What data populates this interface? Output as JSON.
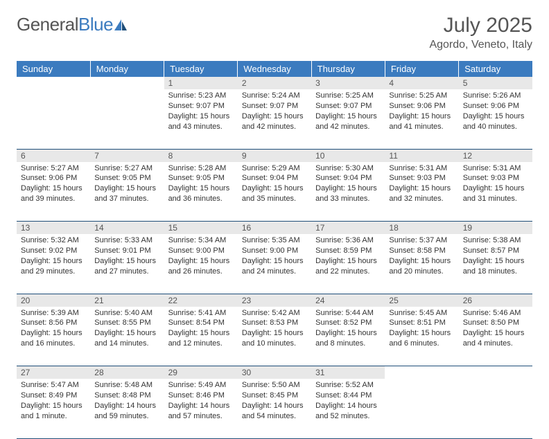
{
  "brand": {
    "part1": "General",
    "part2": "Blue"
  },
  "title": "July 2025",
  "location": "Agordo, Veneto, Italy",
  "colors": {
    "header_bg": "#3b7bbf",
    "header_text": "#ffffff",
    "daynum_bg": "#e8e8e8",
    "border": "#1f4e79",
    "text": "#333333",
    "title_text": "#555555"
  },
  "weekdays": [
    "Sunday",
    "Monday",
    "Tuesday",
    "Wednesday",
    "Thursday",
    "Friday",
    "Saturday"
  ],
  "weeks": [
    [
      null,
      null,
      {
        "n": "1",
        "sr": "5:23 AM",
        "ss": "9:07 PM",
        "dl": "15 hours and 43 minutes."
      },
      {
        "n": "2",
        "sr": "5:24 AM",
        "ss": "9:07 PM",
        "dl": "15 hours and 42 minutes."
      },
      {
        "n": "3",
        "sr": "5:25 AM",
        "ss": "9:07 PM",
        "dl": "15 hours and 42 minutes."
      },
      {
        "n": "4",
        "sr": "5:25 AM",
        "ss": "9:06 PM",
        "dl": "15 hours and 41 minutes."
      },
      {
        "n": "5",
        "sr": "5:26 AM",
        "ss": "9:06 PM",
        "dl": "15 hours and 40 minutes."
      }
    ],
    [
      {
        "n": "6",
        "sr": "5:27 AM",
        "ss": "9:06 PM",
        "dl": "15 hours and 39 minutes."
      },
      {
        "n": "7",
        "sr": "5:27 AM",
        "ss": "9:05 PM",
        "dl": "15 hours and 37 minutes."
      },
      {
        "n": "8",
        "sr": "5:28 AM",
        "ss": "9:05 PM",
        "dl": "15 hours and 36 minutes."
      },
      {
        "n": "9",
        "sr": "5:29 AM",
        "ss": "9:04 PM",
        "dl": "15 hours and 35 minutes."
      },
      {
        "n": "10",
        "sr": "5:30 AM",
        "ss": "9:04 PM",
        "dl": "15 hours and 33 minutes."
      },
      {
        "n": "11",
        "sr": "5:31 AM",
        "ss": "9:03 PM",
        "dl": "15 hours and 32 minutes."
      },
      {
        "n": "12",
        "sr": "5:31 AM",
        "ss": "9:03 PM",
        "dl": "15 hours and 31 minutes."
      }
    ],
    [
      {
        "n": "13",
        "sr": "5:32 AM",
        "ss": "9:02 PM",
        "dl": "15 hours and 29 minutes."
      },
      {
        "n": "14",
        "sr": "5:33 AM",
        "ss": "9:01 PM",
        "dl": "15 hours and 27 minutes."
      },
      {
        "n": "15",
        "sr": "5:34 AM",
        "ss": "9:00 PM",
        "dl": "15 hours and 26 minutes."
      },
      {
        "n": "16",
        "sr": "5:35 AM",
        "ss": "9:00 PM",
        "dl": "15 hours and 24 minutes."
      },
      {
        "n": "17",
        "sr": "5:36 AM",
        "ss": "8:59 PM",
        "dl": "15 hours and 22 minutes."
      },
      {
        "n": "18",
        "sr": "5:37 AM",
        "ss": "8:58 PM",
        "dl": "15 hours and 20 minutes."
      },
      {
        "n": "19",
        "sr": "5:38 AM",
        "ss": "8:57 PM",
        "dl": "15 hours and 18 minutes."
      }
    ],
    [
      {
        "n": "20",
        "sr": "5:39 AM",
        "ss": "8:56 PM",
        "dl": "15 hours and 16 minutes."
      },
      {
        "n": "21",
        "sr": "5:40 AM",
        "ss": "8:55 PM",
        "dl": "15 hours and 14 minutes."
      },
      {
        "n": "22",
        "sr": "5:41 AM",
        "ss": "8:54 PM",
        "dl": "15 hours and 12 minutes."
      },
      {
        "n": "23",
        "sr": "5:42 AM",
        "ss": "8:53 PM",
        "dl": "15 hours and 10 minutes."
      },
      {
        "n": "24",
        "sr": "5:44 AM",
        "ss": "8:52 PM",
        "dl": "15 hours and 8 minutes."
      },
      {
        "n": "25",
        "sr": "5:45 AM",
        "ss": "8:51 PM",
        "dl": "15 hours and 6 minutes."
      },
      {
        "n": "26",
        "sr": "5:46 AM",
        "ss": "8:50 PM",
        "dl": "15 hours and 4 minutes."
      }
    ],
    [
      {
        "n": "27",
        "sr": "5:47 AM",
        "ss": "8:49 PM",
        "dl": "15 hours and 1 minute."
      },
      {
        "n": "28",
        "sr": "5:48 AM",
        "ss": "8:48 PM",
        "dl": "14 hours and 59 minutes."
      },
      {
        "n": "29",
        "sr": "5:49 AM",
        "ss": "8:46 PM",
        "dl": "14 hours and 57 minutes."
      },
      {
        "n": "30",
        "sr": "5:50 AM",
        "ss": "8:45 PM",
        "dl": "14 hours and 54 minutes."
      },
      {
        "n": "31",
        "sr": "5:52 AM",
        "ss": "8:44 PM",
        "dl": "14 hours and 52 minutes."
      },
      null,
      null
    ]
  ],
  "labels": {
    "sunrise": "Sunrise: ",
    "sunset": "Sunset: ",
    "daylight": "Daylight: "
  }
}
